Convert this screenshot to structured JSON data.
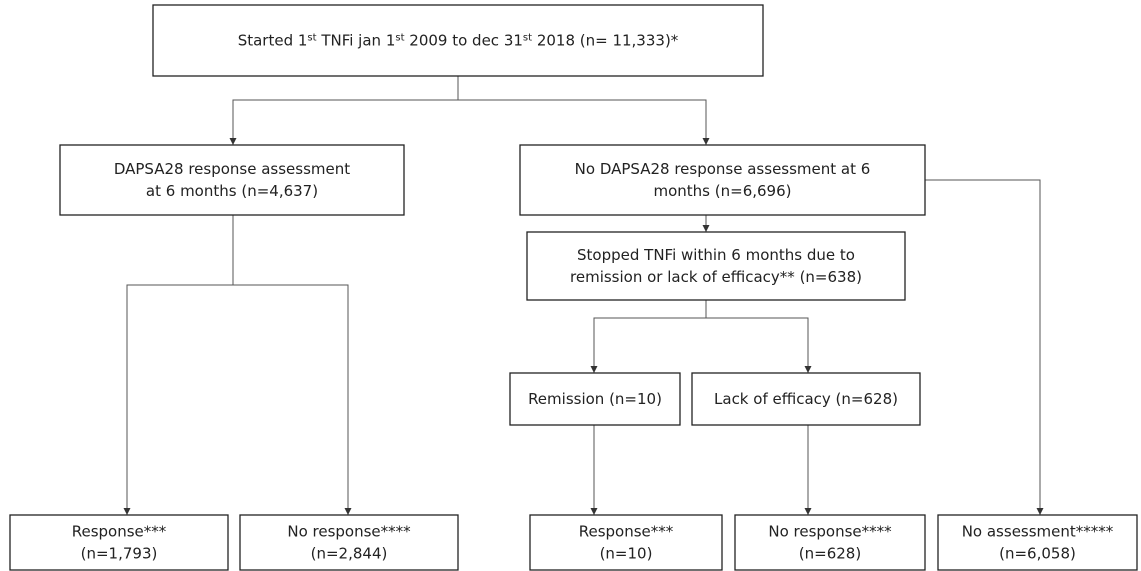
{
  "nodes": [
    {
      "segments": [
        {
          "text": "Started 1"
        },
        {
          "text": "st",
          "sup": true
        },
        {
          "text": " TNFi jan 1"
        },
        {
          "text": "st",
          "sup": true
        },
        {
          "text": " 2009 to dec 31"
        },
        {
          "text": "st",
          "sup": true
        },
        {
          "text": " 2018 (n= 11,333)*"
        }
      ]
    },
    {
      "lines": [
        "DAPSA28 response assessment",
        "at 6 months (n=4,637)"
      ]
    },
    {
      "lines": [
        "No DAPSA28 response assessment at 6",
        "months (n=6,696)"
      ]
    },
    {
      "lines": [
        "Stopped TNFi within 6 months due to",
        "remission or lack of efficacy** (n=638)"
      ]
    },
    {
      "lines": [
        "Remission (n=10)"
      ]
    },
    {
      "lines": [
        "Lack of efficacy (n=628)"
      ]
    },
    {
      "lines": [
        "Response***",
        "(n=1,793)"
      ]
    },
    {
      "lines": [
        "No response****",
        "(n=2,844)"
      ]
    },
    {
      "lines": [
        "Response***",
        "(n=10)"
      ]
    },
    {
      "lines": [
        "No response****",
        "(n=628)"
      ]
    },
    {
      "lines": [
        "No assessment*****",
        "(n=6,058)"
      ]
    }
  ]
}
